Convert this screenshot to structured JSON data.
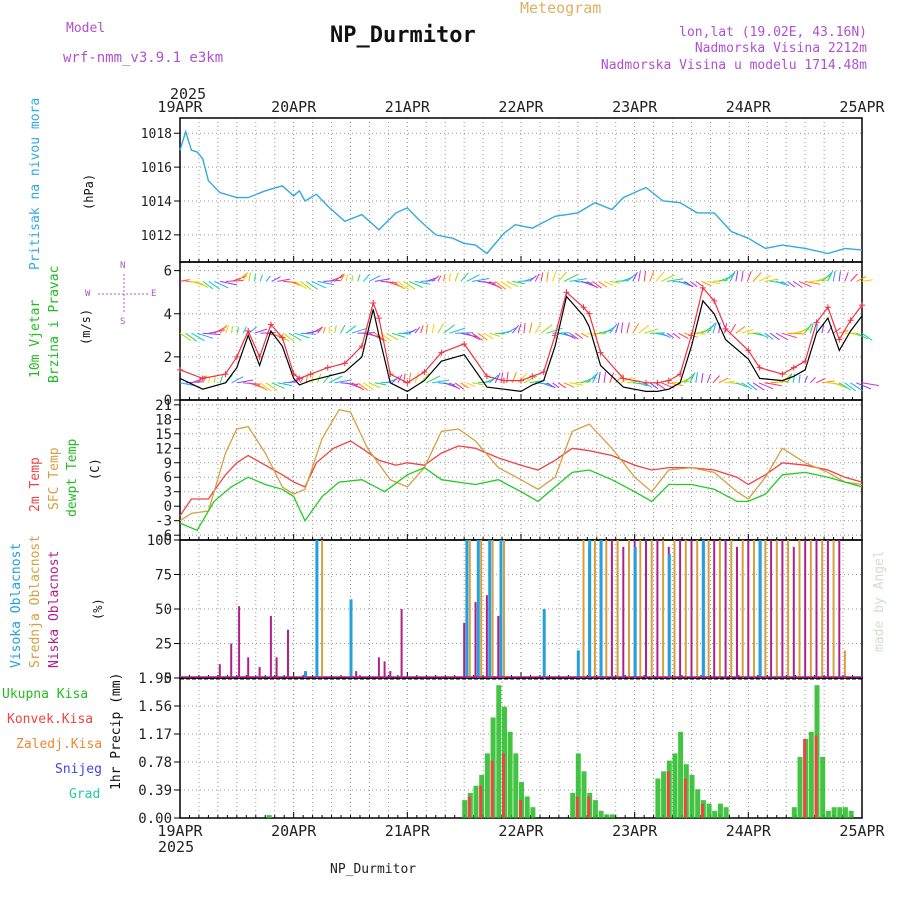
{
  "header": {
    "model_label": "Model",
    "model_name": "wrf-nmm_v3.9.1 e3km",
    "meteogram_label": "Meteogram",
    "station_title": "NP_Durmitor",
    "coords": "lon,lat (19.02E, 43.16N)",
    "elevation": "Nadmorska Visina 2212m",
    "model_elevation": "Nadmorska Visina u modelu 1714.48m",
    "year_top": "2025",
    "year_bottom": "2025",
    "footer_station": "NP_Durmitor",
    "credit": "made by Angel"
  },
  "colors": {
    "pressure": "#33aadd",
    "temp2m": "#ee4444",
    "sfc_temp": "#d4a040",
    "dewpt": "#22cc22",
    "high_cloud": "#22a0e0",
    "mid_cloud": "#d4a040",
    "low_cloud": "#b0208a",
    "precip_total": "#22bb22",
    "precip_conv": "#ee4444",
    "precip_frz": "#ee8833",
    "snow": "#4444dd",
    "grad": "#22ccaa",
    "wind_gust": "#ee3344",
    "wind_speed": "#000000",
    "label_purple": "#b050d0"
  },
  "x_axis": {
    "dates": [
      "19APR",
      "20APR",
      "21APR",
      "22APR",
      "23APR",
      "24APR",
      "25APR"
    ]
  },
  "chart_data": [
    {
      "type": "line",
      "id": "pressure",
      "title": "Pritisak na nivou mora",
      "ylabel": "(hPa)",
      "ylim": [
        1010.4,
        1018.9
      ],
      "yticks": [
        1012,
        1014,
        1016,
        1018
      ],
      "x": [
        0,
        0.05,
        0.1,
        0.15,
        0.2,
        0.25,
        0.35,
        0.5,
        0.6,
        0.75,
        0.9,
        1.0,
        1.05,
        1.1,
        1.2,
        1.3,
        1.45,
        1.6,
        1.75,
        1.9,
        2.0,
        2.1,
        2.25,
        2.4,
        2.5,
        2.6,
        2.7,
        2.8,
        2.85,
        2.95,
        3.1,
        3.3,
        3.5,
        3.65,
        3.8,
        3.9,
        4.0,
        4.1,
        4.25,
        4.4,
        4.55,
        4.7,
        4.85,
        5.0,
        5.15,
        5.3,
        5.5,
        5.7,
        5.85,
        6.0
      ],
      "values": [
        1017.0,
        1018.1,
        1017.0,
        1016.9,
        1016.5,
        1015.2,
        1014.5,
        1014.2,
        1014.2,
        1014.6,
        1014.9,
        1014.3,
        1014.6,
        1014.0,
        1014.4,
        1013.7,
        1012.8,
        1013.2,
        1012.3,
        1013.3,
        1013.6,
        1012.9,
        1012.0,
        1011.8,
        1011.5,
        1011.4,
        1010.9,
        1011.7,
        1012.1,
        1012.6,
        1012.4,
        1013.1,
        1013.3,
        1013.9,
        1013.5,
        1014.2,
        1014.5,
        1014.8,
        1014.0,
        1013.9,
        1013.3,
        1013.3,
        1012.2,
        1011.8,
        1011.2,
        1011.4,
        1011.2,
        1010.9,
        1011.2,
        1011.1
      ]
    },
    {
      "type": "line",
      "id": "wind",
      "title": "10m Vjetar Brzina i Pravac",
      "ylabel": "(m/s)",
      "ylim": [
        0,
        6.4
      ],
      "yticks": [
        0,
        2,
        4,
        6
      ],
      "compass": {
        "north": "N",
        "south": "S",
        "west": "W",
        "east": "E"
      },
      "series": [
        {
          "name": "gust",
          "x": [
            0,
            0.2,
            0.4,
            0.5,
            0.6,
            0.7,
            0.8,
            0.9,
            1.0,
            1.05,
            1.15,
            1.3,
            1.45,
            1.6,
            1.7,
            1.75,
            1.85,
            2.0,
            2.15,
            2.3,
            2.5,
            2.7,
            2.85,
            3.0,
            3.1,
            3.2,
            3.3,
            3.4,
            3.55,
            3.6,
            3.7,
            3.9,
            4.1,
            4.2,
            4.3,
            4.4,
            4.5,
            4.6,
            4.7,
            4.8,
            5.0,
            5.1,
            5.3,
            5.4,
            5.5,
            5.6,
            5.7,
            5.8,
            5.9,
            6.0
          ],
          "values": [
            1.4,
            1.0,
            1.2,
            2.0,
            3.2,
            2.0,
            3.5,
            2.9,
            1.2,
            1.0,
            1.2,
            1.5,
            1.7,
            2.5,
            4.5,
            3.8,
            1.2,
            0.8,
            1.3,
            2.2,
            2.6,
            1.1,
            0.9,
            0.9,
            1.1,
            1.3,
            3.0,
            5.0,
            4.3,
            4.0,
            2.2,
            1.0,
            0.8,
            0.8,
            0.9,
            1.2,
            3.0,
            5.2,
            4.6,
            3.3,
            2.3,
            1.5,
            1.2,
            1.5,
            1.8,
            3.6,
            4.3,
            2.8,
            3.7,
            4.4
          ]
        },
        {
          "name": "speed",
          "x": [
            0,
            0.2,
            0.4,
            0.5,
            0.6,
            0.7,
            0.8,
            0.9,
            1.0,
            1.05,
            1.15,
            1.3,
            1.45,
            1.6,
            1.7,
            1.75,
            1.85,
            2.0,
            2.15,
            2.3,
            2.5,
            2.7,
            2.85,
            3.0,
            3.1,
            3.2,
            3.3,
            3.4,
            3.55,
            3.6,
            3.7,
            3.9,
            4.1,
            4.2,
            4.3,
            4.4,
            4.5,
            4.6,
            4.7,
            4.8,
            5.0,
            5.1,
            5.3,
            5.4,
            5.5,
            5.6,
            5.7,
            5.8,
            5.9,
            6.0
          ],
          "values": [
            1.0,
            0.5,
            0.8,
            1.5,
            3.0,
            1.6,
            3.2,
            2.5,
            1.0,
            0.7,
            0.9,
            1.1,
            1.3,
            2.0,
            4.2,
            3.0,
            0.8,
            0.4,
            0.9,
            1.8,
            2.1,
            0.6,
            0.5,
            0.4,
            0.7,
            0.9,
            2.5,
            4.8,
            3.9,
            3.4,
            1.6,
            0.6,
            0.4,
            0.4,
            0.5,
            0.8,
            2.5,
            4.6,
            4.0,
            2.8,
            1.9,
            1.0,
            0.9,
            1.1,
            1.4,
            3.1,
            3.8,
            2.3,
            3.2,
            3.9
          ]
        }
      ],
      "vector_rows": [
        5.5,
        3.1,
        0.8
      ]
    },
    {
      "type": "line",
      "id": "temperature",
      "title": "2m Temp / SFC Temp / dewpt Temp",
      "ylabel": "(C)",
      "ylim": [
        -7,
        22
      ],
      "yticks": [
        -6,
        -3,
        0,
        3,
        6,
        9,
        12,
        15,
        18,
        21
      ],
      "series": [
        {
          "name": "2m Temp",
          "x": [
            0,
            0.1,
            0.25,
            0.4,
            0.5,
            0.6,
            0.75,
            0.9,
            1.0,
            1.1,
            1.2,
            1.35,
            1.5,
            1.6,
            1.75,
            1.9,
            2.0,
            2.15,
            2.3,
            2.45,
            2.6,
            2.8,
            3.0,
            3.15,
            3.3,
            3.45,
            3.6,
            3.8,
            4.0,
            4.15,
            4.3,
            4.5,
            4.7,
            4.9,
            5.0,
            5.15,
            5.3,
            5.5,
            5.7,
            5.85,
            6.0
          ],
          "values": [
            -2.0,
            1.5,
            1.5,
            6.5,
            9.0,
            10.5,
            8.5,
            6.5,
            5.0,
            4.0,
            9.0,
            12.0,
            13.5,
            12.0,
            9.5,
            8.5,
            9.0,
            8.5,
            11.0,
            12.5,
            12.0,
            10.0,
            8.5,
            7.5,
            9.5,
            12.0,
            11.5,
            10.5,
            8.5,
            7.5,
            8.0,
            8.0,
            7.5,
            6.0,
            4.5,
            6.5,
            9.0,
            8.5,
            7.5,
            6.0,
            5.0
          ]
        },
        {
          "name": "SFC Temp",
          "x": [
            0,
            0.1,
            0.25,
            0.4,
            0.5,
            0.6,
            0.75,
            0.9,
            1.0,
            1.1,
            1.25,
            1.4,
            1.5,
            1.65,
            1.85,
            2.0,
            2.15,
            2.3,
            2.45,
            2.6,
            2.8,
            3.0,
            3.15,
            3.3,
            3.45,
            3.6,
            3.8,
            4.0,
            4.15,
            4.3,
            4.5,
            4.7,
            4.9,
            5.0,
            5.15,
            5.3,
            5.5,
            5.7,
            5.85,
            6.0
          ],
          "values": [
            -3.0,
            -1.5,
            -1.0,
            11.0,
            16.0,
            16.5,
            11.0,
            4.0,
            2.5,
            3.5,
            14.0,
            20.0,
            19.5,
            12.0,
            5.5,
            4.0,
            8.0,
            15.5,
            16.0,
            13.5,
            8.0,
            5.5,
            3.5,
            6.0,
            15.5,
            17.0,
            12.0,
            6.0,
            3.0,
            7.5,
            8.0,
            7.0,
            3.0,
            1.5,
            6.0,
            12.0,
            9.0,
            7.0,
            5.0,
            4.5
          ]
        },
        {
          "name": "dewpt Temp",
          "x": [
            0,
            0.15,
            0.3,
            0.45,
            0.6,
            0.75,
            0.9,
            1.0,
            1.1,
            1.25,
            1.4,
            1.6,
            1.8,
            2.0,
            2.15,
            2.3,
            2.45,
            2.6,
            2.8,
            3.0,
            3.15,
            3.3,
            3.45,
            3.6,
            3.8,
            4.0,
            4.15,
            4.3,
            4.5,
            4.7,
            4.9,
            5.0,
            5.15,
            5.3,
            5.5,
            5.7,
            5.85,
            6.0
          ],
          "values": [
            -3.5,
            -5.0,
            1.0,
            4.0,
            6.0,
            4.5,
            3.5,
            2.0,
            -3.0,
            2.0,
            5.0,
            5.5,
            3.0,
            6.5,
            8.0,
            5.5,
            5.0,
            4.5,
            5.5,
            3.0,
            1.0,
            4.0,
            7.0,
            7.5,
            5.5,
            3.0,
            1.0,
            4.5,
            4.5,
            3.5,
            1.0,
            1.0,
            2.5,
            6.5,
            7.0,
            6.0,
            5.0,
            4.0
          ]
        }
      ]
    },
    {
      "type": "bar",
      "id": "cloud",
      "title": "Visoka / Srednja / Niska Oblacnost",
      "ylabel": "(%)",
      "ylim": [
        0,
        100
      ],
      "yticks": [
        0,
        25,
        50,
        75,
        100
      ],
      "series": [
        {
          "name": "Niska Oblacnost",
          "x": [
            0.35,
            0.45,
            0.52,
            0.6,
            0.7,
            0.8,
            0.85,
            0.95,
            1.55,
            1.75,
            1.8,
            1.85,
            1.95,
            2.5,
            2.6,
            2.7,
            2.8,
            3.55,
            3.6,
            3.7,
            3.8,
            3.9,
            4.0,
            4.1,
            4.2,
            4.3,
            4.4,
            4.5,
            4.6,
            4.7,
            4.8,
            4.9,
            5.0,
            5.1,
            5.2,
            5.3,
            5.4,
            5.5,
            5.6,
            5.7,
            5.8
          ],
          "values": [
            10,
            25,
            52,
            15,
            8,
            45,
            15,
            35,
            5,
            15,
            12,
            5,
            50,
            40,
            55,
            60,
            45,
            30,
            95,
            100,
            100,
            95,
            100,
            100,
            100,
            95,
            100,
            100,
            100,
            100,
            100,
            95,
            100,
            100,
            100,
            100,
            95,
            100,
            100,
            100,
            100
          ]
        },
        {
          "name": "Srednja Oblacnost",
          "x": [
            1.25,
            2.55,
            2.65,
            2.75,
            2.85,
            3.55,
            3.65,
            3.75,
            3.85,
            3.95,
            4.05,
            4.15,
            4.25,
            4.35,
            4.45,
            4.55,
            4.65,
            4.75,
            4.85,
            4.95,
            5.05,
            5.15,
            5.25,
            5.35,
            5.45,
            5.55,
            5.65,
            5.75,
            5.85
          ],
          "values": [
            100,
            100,
            100,
            100,
            100,
            100,
            100,
            100,
            100,
            100,
            100,
            100,
            100,
            100,
            100,
            100,
            100,
            100,
            100,
            100,
            100,
            100,
            100,
            100,
            100,
            100,
            100,
            100,
            20
          ]
        },
        {
          "name": "Visoka Oblacnost",
          "x": [
            1.1,
            1.2,
            1.5,
            2.52,
            2.62,
            2.72,
            2.82,
            3.2,
            3.5,
            3.6,
            3.7,
            4.0,
            4.3,
            4.6,
            5.1
          ],
          "values": [
            5,
            100,
            57,
            100,
            100,
            100,
            100,
            50,
            20,
            100,
            100,
            95,
            90,
            100,
            100
          ]
        }
      ]
    },
    {
      "type": "bar",
      "id": "precip",
      "title": "1hr Precip",
      "ylabel": "1hr Precip (mm)",
      "ylim": [
        0,
        1.95
      ],
      "yticks": [
        0,
        0.39,
        0.78,
        1.17,
        1.56,
        1.95
      ],
      "legend": [
        "Ukupna Kisa",
        "Konvek.Kisa",
        "Zaledj.Kisa",
        "Snijeg",
        "Grad"
      ],
      "series": [
        {
          "name": "Ukupna Kisa",
          "x": [
            0.78,
            2.5,
            2.55,
            2.6,
            2.65,
            2.7,
            2.75,
            2.8,
            2.85,
            2.9,
            2.95,
            3.0,
            3.05,
            3.1,
            3.45,
            3.5,
            3.55,
            3.6,
            3.65,
            3.7,
            3.75,
            3.8,
            4.2,
            4.25,
            4.3,
            4.35,
            4.4,
            4.45,
            4.5,
            4.55,
            4.6,
            4.65,
            4.7,
            4.75,
            4.8,
            5.4,
            5.45,
            5.5,
            5.55,
            5.6,
            5.65,
            5.7,
            5.75,
            5.8,
            5.85,
            5.9
          ],
          "values": [
            0.04,
            0.25,
            0.35,
            0.45,
            0.6,
            0.9,
            1.4,
            1.85,
            1.55,
            1.2,
            0.9,
            0.5,
            0.3,
            0.15,
            0.35,
            0.9,
            0.65,
            0.35,
            0.25,
            0.1,
            0.05,
            0.05,
            0.55,
            0.65,
            0.8,
            0.9,
            1.2,
            0.75,
            0.6,
            0.4,
            0.25,
            0.2,
            0.1,
            0.2,
            0.15,
            0.15,
            0.85,
            1.1,
            1.2,
            1.85,
            0.85,
            0.1,
            0.15,
            0.15,
            0.15,
            0.1
          ]
        },
        {
          "name": "Konvek.Kisa",
          "x": [
            2.55,
            2.65,
            2.75,
            2.85,
            3.0,
            3.5,
            3.6,
            4.3,
            4.45,
            4.6,
            5.5,
            5.6
          ],
          "values": [
            0.3,
            0.45,
            0.8,
            0.9,
            0.25,
            0.3,
            0.3,
            0.65,
            0.55,
            0.2,
            1.1,
            1.15
          ]
        }
      ]
    }
  ]
}
